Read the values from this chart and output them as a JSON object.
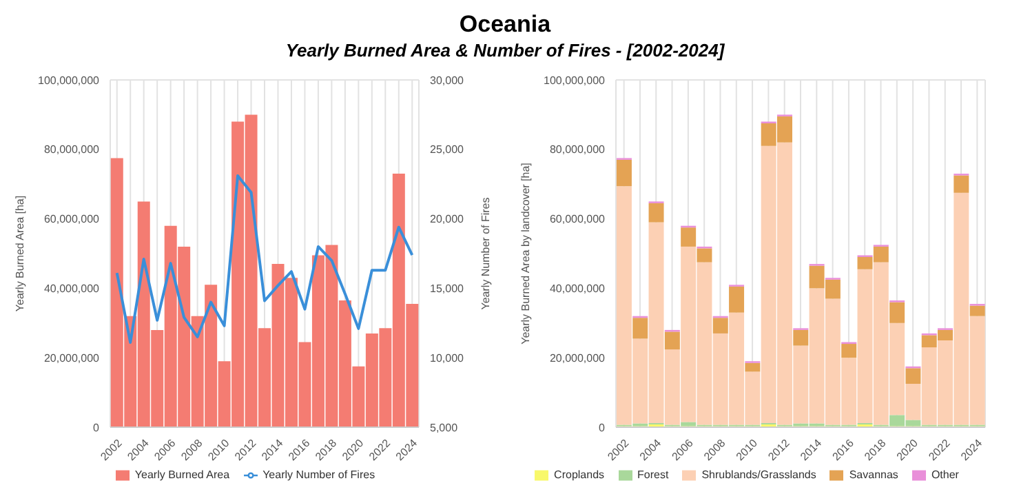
{
  "chart_data": [
    {
      "type": "bar",
      "title": "Oceania",
      "subtitle": "Yearly Burned Area & Number of Fires - [2002-2024]",
      "ylabel": "Yearly Burned Area [ha]",
      "y2label": "Yearly Number of Fires",
      "categories": [
        "2002",
        null,
        "2004",
        null,
        "2006",
        null,
        "2008",
        null,
        "2010",
        null,
        "2012",
        null,
        "2014",
        null,
        "2016",
        null,
        "2018",
        null,
        "2020",
        null,
        "2022",
        null,
        "2024"
      ],
      "series": [
        {
          "name": "Yearly Burned Area",
          "type": "bar",
          "color": "#f47c72",
          "values": [
            77500000,
            32000000,
            65000000,
            28000000,
            58000000,
            52000000,
            32000000,
            41000000,
            19000000,
            88000000,
            90000000,
            28500000,
            47000000,
            43000000,
            24500000,
            49500000,
            52500000,
            36500000,
            17500000,
            27000000,
            28500000,
            73000000,
            35500000
          ]
        },
        {
          "name": "Yearly Number of Fires",
          "type": "line",
          "axis": "y2",
          "color": "#3a8fd9",
          "values": [
            16100,
            11100,
            17100,
            12700,
            16800,
            12900,
            11500,
            14000,
            12300,
            23100,
            21900,
            14100,
            15200,
            16200,
            13500,
            18000,
            17000,
            14600,
            12100,
            16300,
            16300,
            19400,
            17400
          ]
        }
      ],
      "ylim": [
        0,
        100000000
      ],
      "yticks": [
        {
          "value": 0,
          "label": "0"
        },
        {
          "value": 20000000,
          "label": "20,000,000"
        },
        {
          "value": 40000000,
          "label": "40,000,000"
        },
        {
          "value": 60000000,
          "label": "60,000,000"
        },
        {
          "value": 80000000,
          "label": "80,000,000"
        },
        {
          "value": 100000000,
          "label": "100,000,000"
        }
      ],
      "y2lim": [
        5000,
        30000
      ],
      "y2ticks": [
        {
          "value": 5000,
          "label": "5,000"
        },
        {
          "value": 10000,
          "label": "10,000"
        },
        {
          "value": 15000,
          "label": "15,000"
        },
        {
          "value": 20000,
          "label": "20,000"
        },
        {
          "value": 25000,
          "label": "25,000"
        },
        {
          "value": 30000,
          "label": "30,000"
        }
      ],
      "grid": true,
      "legend": "bottom",
      "marker": "none"
    },
    {
      "type": "bar",
      "ylabel": "Yearly Burned Area by landcover [ha]",
      "stacked": true,
      "categories": [
        "2002",
        null,
        "2004",
        null,
        "2006",
        null,
        "2008",
        null,
        "2010",
        null,
        "2012",
        null,
        "2014",
        null,
        "2016",
        null,
        "2018",
        null,
        "2020",
        null,
        "2022",
        null,
        "2024"
      ],
      "series": [
        {
          "name": "Croplands",
          "color": "#f8f86a",
          "values": [
            300000,
            300000,
            800000,
            300000,
            300000,
            300000,
            300000,
            300000,
            300000,
            800000,
            300000,
            300000,
            300000,
            300000,
            300000,
            800000,
            300000,
            300000,
            300000,
            300000,
            300000,
            300000,
            300000
          ]
        },
        {
          "name": "Forest",
          "color": "#a9d89b",
          "values": [
            400000,
            800000,
            400000,
            400000,
            1200000,
            400000,
            400000,
            400000,
            400000,
            400000,
            400000,
            800000,
            800000,
            400000,
            400000,
            400000,
            400000,
            3200000,
            1800000,
            400000,
            400000,
            400000,
            400000
          ]
        },
        {
          "name": "Shrublands/Grasslands",
          "color": "#fcd0b4",
          "values": [
            68700000,
            24400000,
            57800000,
            21700000,
            50500000,
            46800000,
            26300000,
            32300000,
            15300000,
            79800000,
            81300000,
            22400000,
            38900000,
            36300000,
            19300000,
            44300000,
            46800000,
            26500000,
            10400000,
            22300000,
            24300000,
            66800000,
            31300000
          ]
        },
        {
          "name": "Savannas",
          "color": "#e4a354",
          "values": [
            7600000,
            6000000,
            5500000,
            5100000,
            5500000,
            4000000,
            4500000,
            7500000,
            2500000,
            6500000,
            7500000,
            4500000,
            6500000,
            5500000,
            4000000,
            3500000,
            4500000,
            6000000,
            4500000,
            3500000,
            3000000,
            5000000,
            3000000
          ]
        },
        {
          "name": "Other",
          "color": "#e98fd9",
          "values": [
            500000,
            500000,
            500000,
            500000,
            500000,
            500000,
            500000,
            500000,
            500000,
            500000,
            500000,
            500000,
            500000,
            500000,
            500000,
            500000,
            500000,
            500000,
            500000,
            500000,
            500000,
            500000,
            500000
          ]
        }
      ],
      "ylim": [
        0,
        100000000
      ],
      "yticks": [
        {
          "value": 0,
          "label": "0"
        },
        {
          "value": 20000000,
          "label": "20,000,000"
        },
        {
          "value": 40000000,
          "label": "40,000,000"
        },
        {
          "value": 60000000,
          "label": "60,000,000"
        },
        {
          "value": 80000000,
          "label": "80,000,000"
        },
        {
          "value": 100000000,
          "label": "100,000,000"
        }
      ],
      "grid": true,
      "legend": "bottom"
    }
  ]
}
